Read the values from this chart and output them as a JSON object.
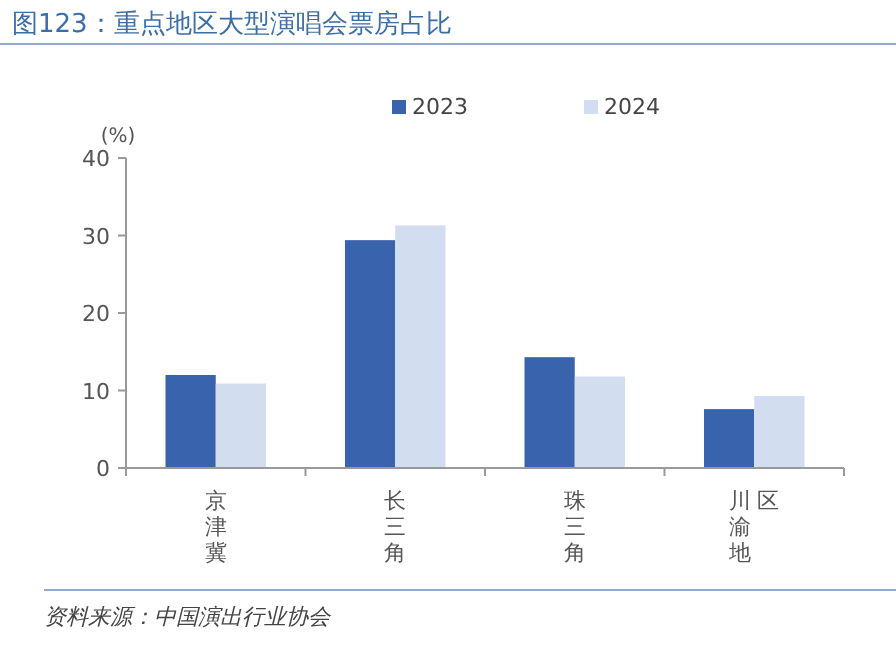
{
  "chart_data": {
    "type": "bar",
    "title": "图123：重点地区大型演唱会票房占比",
    "ylabel": "(%)",
    "categories": [
      "京津冀",
      "长三角",
      "珠三角",
      "川渝地区"
    ],
    "series": [
      {
        "name": "2023",
        "color": "#3a63ad",
        "values": [
          12.0,
          29.4,
          14.3,
          7.6
        ]
      },
      {
        "name": "2024",
        "color": "#d2ddf0",
        "values": [
          10.9,
          31.3,
          11.8,
          9.3
        ]
      }
    ],
    "ylim": [
      0,
      40
    ],
    "yticks": [
      0,
      10,
      20,
      30,
      40
    ],
    "grid": false,
    "legend": "top",
    "annotations": [
      "资料来源：中国演出行业协会"
    ]
  }
}
